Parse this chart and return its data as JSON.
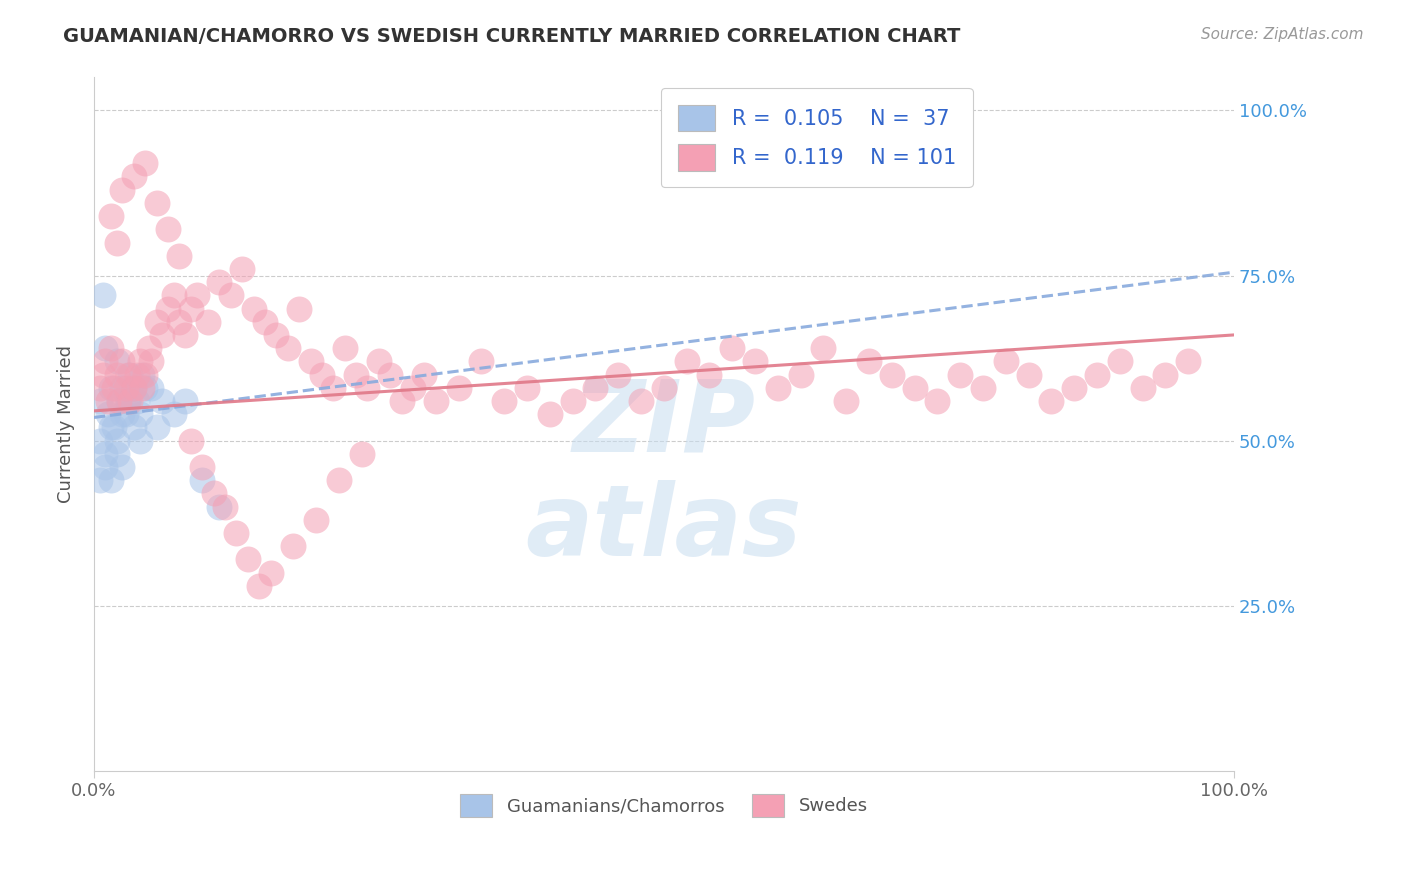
{
  "title": "GUAMANIAN/CHAMORRO VS SWEDISH CURRENTLY MARRIED CORRELATION CHART",
  "source": "Source: ZipAtlas.com",
  "ylabel": "Currently Married",
  "y_ticks": [
    0.25,
    0.5,
    0.75,
    1.0
  ],
  "y_tick_labels": [
    "25.0%",
    "50.0%",
    "75.0%",
    "100.0%"
  ],
  "xlim": [
    0.0,
    1.0
  ],
  "ylim": [
    0.0,
    1.05
  ],
  "legend1_R": "0.105",
  "legend1_N": "37",
  "legend2_R": "0.119",
  "legend2_N": "101",
  "color_blue": "#a8c4e8",
  "color_pink": "#f4a0b4",
  "color_title": "#333333",
  "color_legend_text": "#3366cc",
  "color_right_ticks": "#4499dd",
  "background": "#ffffff",
  "guam_x": [
    0.005,
    0.008,
    0.01,
    0.012,
    0.015,
    0.018,
    0.02,
    0.022,
    0.025,
    0.028,
    0.03,
    0.032,
    0.035,
    0.038,
    0.04,
    0.042,
    0.045,
    0.005,
    0.01,
    0.015,
    0.02,
    0.025,
    0.03,
    0.035,
    0.04,
    0.005,
    0.01,
    0.015,
    0.02,
    0.025,
    0.05,
    0.055,
    0.06,
    0.07,
    0.08,
    0.095,
    0.11
  ],
  "guam_y": [
    0.56,
    0.72,
    0.64,
    0.54,
    0.58,
    0.52,
    0.62,
    0.56,
    0.58,
    0.54,
    0.56,
    0.6,
    0.58,
    0.56,
    0.54,
    0.6,
    0.58,
    0.5,
    0.48,
    0.52,
    0.5,
    0.54,
    0.56,
    0.52,
    0.5,
    0.44,
    0.46,
    0.44,
    0.48,
    0.46,
    0.58,
    0.52,
    0.56,
    0.54,
    0.56,
    0.44,
    0.4
  ],
  "swede_x": [
    0.005,
    0.008,
    0.01,
    0.012,
    0.015,
    0.018,
    0.02,
    0.022,
    0.025,
    0.028,
    0.03,
    0.032,
    0.035,
    0.038,
    0.04,
    0.042,
    0.045,
    0.048,
    0.05,
    0.055,
    0.06,
    0.065,
    0.07,
    0.075,
    0.08,
    0.085,
    0.09,
    0.1,
    0.11,
    0.12,
    0.13,
    0.14,
    0.15,
    0.16,
    0.17,
    0.18,
    0.19,
    0.2,
    0.21,
    0.22,
    0.23,
    0.24,
    0.25,
    0.26,
    0.27,
    0.28,
    0.29,
    0.3,
    0.32,
    0.34,
    0.36,
    0.38,
    0.4,
    0.42,
    0.44,
    0.46,
    0.48,
    0.5,
    0.52,
    0.54,
    0.56,
    0.58,
    0.6,
    0.62,
    0.64,
    0.66,
    0.68,
    0.7,
    0.72,
    0.74,
    0.76,
    0.78,
    0.8,
    0.82,
    0.84,
    0.86,
    0.88,
    0.9,
    0.92,
    0.94,
    0.96,
    0.02,
    0.015,
    0.025,
    0.035,
    0.045,
    0.055,
    0.065,
    0.075,
    0.085,
    0.095,
    0.105,
    0.115,
    0.125,
    0.135,
    0.145,
    0.155,
    0.175,
    0.195,
    0.215,
    0.235
  ],
  "swede_y": [
    0.58,
    0.6,
    0.62,
    0.56,
    0.64,
    0.58,
    0.6,
    0.56,
    0.62,
    0.58,
    0.6,
    0.56,
    0.58,
    0.6,
    0.62,
    0.58,
    0.6,
    0.64,
    0.62,
    0.68,
    0.66,
    0.7,
    0.72,
    0.68,
    0.66,
    0.7,
    0.72,
    0.68,
    0.74,
    0.72,
    0.76,
    0.7,
    0.68,
    0.66,
    0.64,
    0.7,
    0.62,
    0.6,
    0.58,
    0.64,
    0.6,
    0.58,
    0.62,
    0.6,
    0.56,
    0.58,
    0.6,
    0.56,
    0.58,
    0.62,
    0.56,
    0.58,
    0.54,
    0.56,
    0.58,
    0.6,
    0.56,
    0.58,
    0.62,
    0.6,
    0.64,
    0.62,
    0.58,
    0.6,
    0.64,
    0.56,
    0.62,
    0.6,
    0.58,
    0.56,
    0.6,
    0.58,
    0.62,
    0.6,
    0.56,
    0.58,
    0.6,
    0.62,
    0.58,
    0.6,
    0.62,
    0.8,
    0.84,
    0.88,
    0.9,
    0.92,
    0.86,
    0.82,
    0.78,
    0.5,
    0.46,
    0.42,
    0.4,
    0.36,
    0.32,
    0.28,
    0.3,
    0.34,
    0.38,
    0.44,
    0.48
  ],
  "blue_line_x": [
    0.0,
    1.0
  ],
  "blue_line_y": [
    0.535,
    0.755
  ],
  "pink_line_x": [
    0.0,
    1.0
  ],
  "pink_line_y": [
    0.545,
    0.66
  ]
}
